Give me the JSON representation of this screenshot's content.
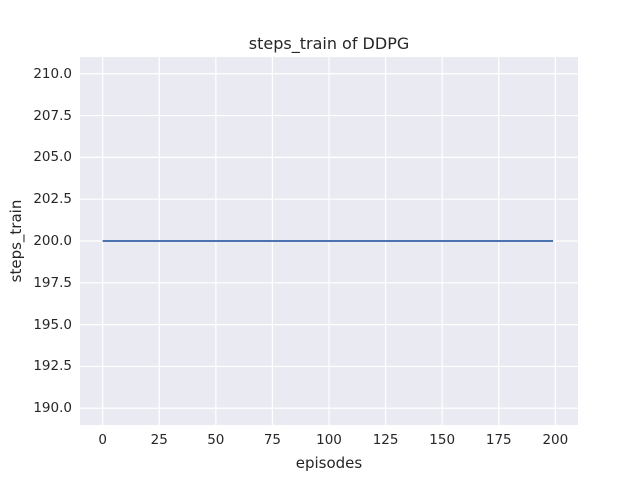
{
  "chart_data": {
    "type": "line",
    "title": "steps_train of DDPG",
    "xlabel": "episodes",
    "ylabel": "steps_train",
    "xlim": [
      -10,
      210
    ],
    "ylim": [
      189,
      211
    ],
    "xticks": [
      0,
      25,
      50,
      75,
      100,
      125,
      150,
      175,
      200
    ],
    "xtick_labels": [
      "0",
      "25",
      "50",
      "75",
      "100",
      "125",
      "150",
      "175",
      "200"
    ],
    "yticks": [
      190.0,
      192.5,
      195.0,
      197.5,
      200.0,
      202.5,
      205.0,
      207.5,
      210.0
    ],
    "ytick_labels": [
      "190.0",
      "192.5",
      "195.0",
      "197.5",
      "200.0",
      "202.5",
      "205.0",
      "207.5",
      "210.0"
    ],
    "grid": true,
    "legend_position": "none",
    "series": [
      {
        "name": "steps_train",
        "x": [
          0,
          199
        ],
        "y": [
          200,
          200
        ],
        "constant_value": 200
      }
    ],
    "colors": {
      "line": "#4c72b0",
      "plot_bg": "#eaeaf2",
      "grid": "#ffffff",
      "text": "#262626",
      "figure_bg": "#ffffff"
    }
  }
}
